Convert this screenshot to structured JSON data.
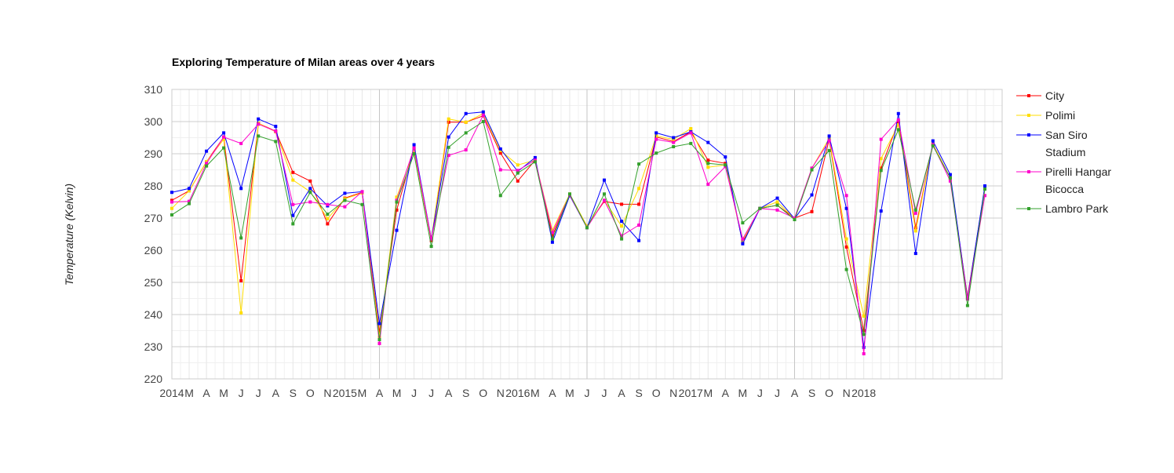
{
  "chart_data": {
    "type": "line",
    "title": "Exploring Temperature of Milan areas over 4 years",
    "ylabel": "Temperature (Kelvin)",
    "xlabel": "",
    "ylim": [
      220,
      310
    ],
    "y_ticks": [
      220,
      230,
      240,
      250,
      260,
      270,
      280,
      290,
      300,
      310
    ],
    "x_range": [
      "2014-01",
      "2018-01"
    ],
    "x_tick_labels": [
      "2014",
      "M",
      "A",
      "M",
      "J",
      "J",
      "A",
      "S",
      "O",
      "N",
      "2015",
      "M",
      "A",
      "M",
      "J",
      "J",
      "A",
      "S",
      "O",
      "N",
      "2016",
      "M",
      "A",
      "M",
      "J",
      "J",
      "A",
      "S",
      "O",
      "N",
      "2017",
      "M",
      "A",
      "M",
      "J",
      "J",
      "A",
      "S",
      "O",
      "N",
      "2018"
    ],
    "grid": true,
    "legend_position": "right",
    "x": [
      "2014-01",
      "2014-02",
      "2014-03",
      "2014-04",
      "2014-05",
      "2014-06",
      "2014-07",
      "2014-08",
      "2014-09",
      "2014-10",
      "2014-11",
      "2014-12",
      "2015-01",
      "2015-02",
      "2015-03",
      "2015-04",
      "2015-05",
      "2015-06",
      "2015-07",
      "2015-08",
      "2015-09",
      "2015-10",
      "2015-11",
      "2015-12",
      "2016-01",
      "2016-02",
      "2016-03",
      "2016-04",
      "2016-05",
      "2016-06",
      "2016-07",
      "2016-08",
      "2016-09",
      "2016-10",
      "2016-11",
      "2016-12",
      "2017-01",
      "2017-02",
      "2017-03",
      "2017-04",
      "2017-05",
      "2017-06",
      "2017-07",
      "2017-08",
      "2017-09",
      "2017-10",
      "2017-11",
      "2017-12"
    ],
    "series": [
      {
        "name": "City",
        "color": "#ff0000",
        "values": [
          275.5,
          278.5,
          287.5,
          295.2,
          250.5,
          299.5,
          297.0,
          284.2,
          281.5,
          268.2,
          276.2,
          278.0,
          234.5,
          272.5,
          291.5,
          263.0,
          299.8,
          299.8,
          301.8,
          290.2,
          281.5,
          288.0,
          264.5,
          277.0,
          267.5,
          275.2,
          274.3,
          274.3,
          295.2,
          293.8,
          296.8,
          288.0,
          287.0,
          262.5,
          273.0,
          274.0,
          270.0,
          272.0,
          294.5,
          261.0,
          235.0,
          285.5,
          300.0,
          267.0,
          293.0,
          282.5,
          245.5,
          279.5
        ]
      },
      {
        "name": "Polimi",
        "color": "#ffdd00",
        "values": [
          273.0,
          278.5,
          287.5,
          294.5,
          240.5,
          299.5,
          296.8,
          281.8,
          278.2,
          269.8,
          276.0,
          277.8,
          233.0,
          276.5,
          291.0,
          263.5,
          300.8,
          299.8,
          302.5,
          291.0,
          286.5,
          288.0,
          266.2,
          277.5,
          267.5,
          275.5,
          267.5,
          279.2,
          295.5,
          294.5,
          297.8,
          285.8,
          286.5,
          263.0,
          273.0,
          275.0,
          269.8,
          285.5,
          294.8,
          263.5,
          239.5,
          288.5,
          299.0,
          266.0,
          293.0,
          282.5,
          245.0,
          279.5
        ]
      },
      {
        "name": "San Siro Stadium",
        "color": "#0000ff",
        "values": [
          278.0,
          279.2,
          290.8,
          296.5,
          279.2,
          300.8,
          298.5,
          270.8,
          279.2,
          273.8,
          277.7,
          278.2,
          237.2,
          266.2,
          292.8,
          263.5,
          295.2,
          302.5,
          303.0,
          291.5,
          284.5,
          288.8,
          262.5,
          277.0,
          267.0,
          281.8,
          269.0,
          263.0,
          296.5,
          295.0,
          296.8,
          293.5,
          289.0,
          262.0,
          273.0,
          276.2,
          269.8,
          277.2,
          295.5,
          273.0,
          229.8,
          272.2,
          302.5,
          259.0,
          294.0,
          283.5,
          245.0,
          280.0
        ]
      },
      {
        "name": "Pirelli Hangar Bicocca",
        "color": "#ff00cc",
        "values": [
          275.0,
          275.2,
          287.0,
          295.2,
          293.2,
          299.2,
          297.0,
          274.2,
          275.0,
          274.2,
          273.5,
          278.2,
          231.0,
          275.5,
          291.8,
          263.5,
          289.5,
          291.2,
          302.0,
          285.0,
          284.8,
          288.0,
          265.5,
          277.2,
          267.0,
          275.5,
          264.5,
          267.8,
          294.5,
          293.5,
          296.5,
          280.5,
          286.0,
          263.5,
          273.0,
          272.5,
          270.0,
          285.5,
          294.0,
          277.0,
          227.8,
          294.5,
          300.5,
          271.5,
          292.8,
          281.5,
          244.8,
          277.0
        ]
      },
      {
        "name": "Lambro Park",
        "color": "#33a02c",
        "values": [
          271.0,
          274.5,
          286.2,
          291.8,
          263.8,
          295.5,
          293.8,
          268.2,
          278.0,
          271.2,
          275.5,
          274.2,
          232.2,
          275.0,
          290.0,
          261.2,
          292.0,
          296.5,
          300.0,
          277.0,
          284.0,
          287.5,
          263.5,
          277.5,
          267.0,
          277.5,
          263.5,
          286.8,
          290.2,
          292.2,
          293.2,
          287.0,
          286.5,
          268.5,
          273.0,
          274.0,
          269.5,
          285.0,
          291.0,
          254.0,
          233.8,
          284.8,
          297.5,
          272.5,
          292.5,
          282.5,
          242.8,
          279.0
        ]
      }
    ]
  }
}
